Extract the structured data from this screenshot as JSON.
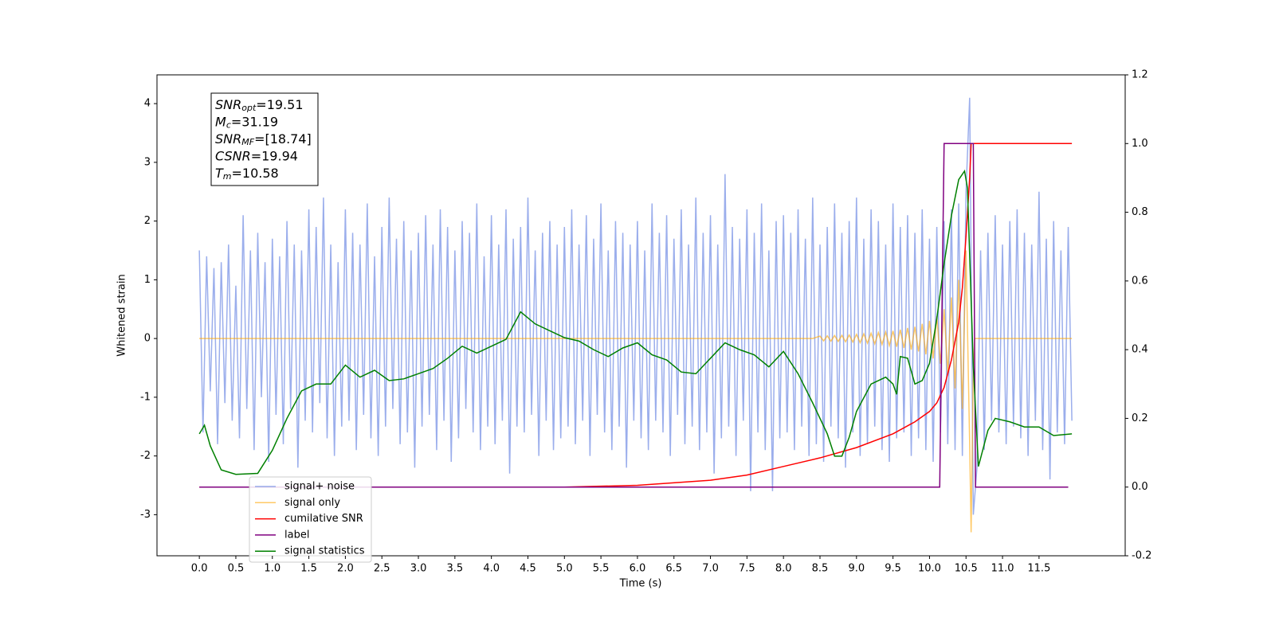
{
  "chart_data": {
    "type": "line",
    "xlabel": "Time (s)",
    "ylabel": "Whitened strain",
    "xlim": [
      -0.58,
      12.68
    ],
    "ylim": [
      -3.7,
      4.49
    ],
    "y2lim": [
      -0.2,
      1.2
    ],
    "xticks": [
      {
        "value": 0,
        "label": "0.0"
      },
      0.5,
      {
        "value": 1,
        "label": "1.0"
      },
      1.5,
      {
        "value": 2,
        "label": "2.0"
      },
      2.5,
      {
        "value": 3,
        "label": "3.0"
      },
      3.5,
      {
        "value": 4,
        "label": "4.0"
      },
      4.5,
      {
        "value": 5,
        "label": "5.0"
      },
      5.5,
      {
        "value": 6,
        "label": "6.0"
      },
      6.5,
      {
        "value": 7,
        "label": "7.0"
      },
      7.5,
      {
        "value": 8,
        "label": "8.0"
      },
      8.5,
      {
        "value": 9,
        "label": "9.0"
      },
      9.5,
      {
        "value": 10,
        "label": "10.0"
      },
      10.5,
      {
        "value": 11,
        "label": "11.0"
      },
      11.5
    ],
    "yticks": [
      -3,
      -2,
      -1,
      0,
      1,
      2,
      3,
      4
    ],
    "y2ticks": [
      -0.2,
      {
        "value": 0,
        "label": "0.0"
      },
      0.2,
      0.4,
      0.6,
      0.8,
      {
        "value": 1,
        "label": "1.0"
      },
      1.2
    ],
    "annotation": [
      {
        "symbol": "SNR",
        "subscript": "opt",
        "text": "=19.51"
      },
      {
        "symbol": "M",
        "subscript": "c",
        "text": "=31.19"
      },
      {
        "symbol": "SNR",
        "subscript": "MF",
        "text": "=[18.74]"
      },
      {
        "symbol": "CSNR",
        "text": "=19.94"
      },
      {
        "symbol": "T",
        "subscript": "m",
        "text": "=10.58"
      }
    ],
    "series": [
      {
        "name": "signal+ noise",
        "color": "#7a93e6",
        "axis": "y",
        "x": [
          0,
          0.05,
          0.1,
          0.15,
          0.2,
          0.25,
          0.3,
          0.35,
          0.4,
          0.45,
          0.5,
          0.55,
          0.6,
          0.65,
          0.7,
          0.75,
          0.8,
          0.85,
          0.9,
          0.95,
          1,
          1.05,
          1.1,
          1.15,
          1.2,
          1.25,
          1.3,
          1.35,
          1.4,
          1.45,
          1.5,
          1.55,
          1.6,
          1.65,
          1.7,
          1.75,
          1.8,
          1.85,
          1.9,
          1.95,
          2,
          2.05,
          2.1,
          2.15,
          2.2,
          2.25,
          2.3,
          2.35,
          2.4,
          2.45,
          2.5,
          2.55,
          2.6,
          2.65,
          2.7,
          2.75,
          2.8,
          2.85,
          2.9,
          2.95,
          3,
          3.05,
          3.1,
          3.15,
          3.2,
          3.25,
          3.3,
          3.35,
          3.4,
          3.45,
          3.5,
          3.55,
          3.6,
          3.65,
          3.7,
          3.75,
          3.8,
          3.85,
          3.9,
          3.95,
          4,
          4.05,
          4.1,
          4.15,
          4.2,
          4.25,
          4.3,
          4.35,
          4.4,
          4.45,
          4.5,
          4.55,
          4.6,
          4.65,
          4.7,
          4.75,
          4.8,
          4.85,
          4.9,
          4.95,
          5,
          5.05,
          5.1,
          5.15,
          5.2,
          5.25,
          5.3,
          5.35,
          5.4,
          5.45,
          5.5,
          5.55,
          5.6,
          5.65,
          5.7,
          5.75,
          5.8,
          5.85,
          5.9,
          5.95,
          6,
          6.05,
          6.1,
          6.15,
          6.2,
          6.25,
          6.3,
          6.35,
          6.4,
          6.45,
          6.5,
          6.55,
          6.6,
          6.65,
          6.7,
          6.75,
          6.8,
          6.85,
          6.9,
          6.95,
          7,
          7.05,
          7.1,
          7.15,
          7.2,
          7.25,
          7.3,
          7.35,
          7.4,
          7.45,
          7.5,
          7.55,
          7.6,
          7.65,
          7.7,
          7.75,
          7.8,
          7.85,
          7.9,
          7.95,
          8,
          8.05,
          8.1,
          8.15,
          8.2,
          8.25,
          8.3,
          8.35,
          8.4,
          8.45,
          8.5,
          8.55,
          8.6,
          8.65,
          8.7,
          8.75,
          8.8,
          8.85,
          8.9,
          8.95,
          9,
          9.05,
          9.1,
          9.15,
          9.2,
          9.25,
          9.3,
          9.35,
          9.4,
          9.45,
          9.5,
          9.55,
          9.6,
          9.65,
          9.7,
          9.75,
          9.8,
          9.85,
          9.9,
          9.95,
          10,
          10.05,
          10.1,
          10.15,
          10.2,
          10.25,
          10.3,
          10.35,
          10.4,
          10.45,
          10.5,
          10.55,
          10.6,
          10.65,
          10.7,
          10.75,
          10.8,
          10.85,
          10.9,
          10.95,
          11,
          11.05,
          11.1,
          11.15,
          11.2,
          11.25,
          11.3,
          11.35,
          11.4,
          11.45,
          11.5,
          11.55,
          11.6,
          11.65,
          11.7,
          11.75,
          11.8,
          11.85,
          11.9,
          11.95
        ],
        "values": [
          1.5,
          -1.6,
          1.4,
          -0.9,
          1.2,
          -1.8,
          1.3,
          -1.1,
          1.6,
          -1.4,
          0.9,
          -1.7,
          2.1,
          -1.2,
          1.5,
          -1.9,
          1.8,
          -1.0,
          1.3,
          -2.1,
          1.7,
          -1.3,
          1.4,
          -1.8,
          2.0,
          -1.2,
          1.6,
          -2.2,
          1.5,
          -1.4,
          2.2,
          -1.6,
          1.9,
          -1.1,
          2.4,
          -1.7,
          1.6,
          -2.0,
          1.3,
          -1.5,
          2.2,
          -1.4,
          1.8,
          -1.9,
          1.6,
          -1.3,
          2.3,
          -1.7,
          1.4,
          -2.0,
          1.9,
          -1.5,
          2.4,
          -1.2,
          1.7,
          -1.8,
          2.0,
          -1.6,
          1.5,
          -2.2,
          1.8,
          -1.5,
          2.1,
          -1.3,
          1.6,
          -1.9,
          2.2,
          -1.4,
          1.9,
          -2.1,
          1.5,
          -1.7,
          2.0,
          -1.2,
          1.8,
          -1.6,
          2.3,
          -1.9,
          1.4,
          -1.5,
          2.1,
          -1.8,
          1.6,
          -1.4,
          2.2,
          -2.3,
          1.7,
          -1.5,
          1.9,
          -1.6,
          2.4,
          -1.3,
          1.5,
          -2.0,
          1.8,
          -1.4,
          2.0,
          -1.9,
          1.6,
          -1.7,
          1.9,
          -1.5,
          2.2,
          -1.8,
          1.6,
          -1.4,
          2.1,
          -2.0,
          1.7,
          -1.3,
          2.3,
          -1.6,
          1.5,
          -1.9,
          2.0,
          -1.5,
          1.8,
          -2.2,
          1.6,
          -1.4,
          2.0,
          -1.7,
          1.5,
          -1.9,
          2.3,
          -1.4,
          1.8,
          -1.6,
          2.1,
          -2.0,
          1.7,
          -1.3,
          2.2,
          -1.8,
          1.6,
          -1.5,
          2.4,
          -1.9,
          1.8,
          -1.6,
          2.1,
          -2.3,
          1.6,
          -1.7,
          2.8,
          -1.5,
          1.9,
          -2.0,
          1.7,
          -1.4,
          2.2,
          -2.6,
          1.8,
          -1.6,
          2.3,
          -1.9,
          1.5,
          -2.6,
          2.0,
          -1.7,
          2.1,
          -1.6,
          1.8,
          -1.9,
          2.2,
          -1.5,
          1.7,
          -2.0,
          2.4,
          -1.8,
          1.6,
          -2.1,
          1.9,
          -1.5,
          2.3,
          -1.7,
          1.8,
          -2.2,
          2.0,
          -1.6,
          2.4,
          -2.0,
          1.7,
          -1.8,
          2.2,
          -1.5,
          2.0,
          -1.9,
          1.6,
          -2.1,
          2.3,
          -1.7,
          1.9,
          -1.6,
          2.1,
          -2.0,
          1.8,
          -1.7,
          2.2,
          -1.9,
          1.7,
          -2.1,
          1.9,
          -1.6,
          2.0,
          -1.8,
          2.2,
          -1.9,
          2.3,
          -2.0,
          2.5,
          4.1,
          -3.0,
          -2.2,
          1.5,
          -1.9,
          1.8,
          -1.4,
          2.1,
          -1.6,
          1.6,
          -1.8,
          2.0,
          -1.5,
          2.2,
          -1.7,
          1.8,
          -2.0,
          1.6,
          -1.4,
          2.5,
          -1.9,
          1.7,
          -2.4,
          2.0,
          -1.6,
          1.5,
          -1.8,
          1.9,
          -1.4
        ]
      },
      {
        "name": "signal only",
        "color": "#ffa500",
        "axis": "y",
        "x": [
          0,
          8.4,
          8.5,
          8.55,
          8.6,
          8.65,
          8.7,
          8.75,
          8.8,
          8.85,
          8.9,
          8.95,
          9,
          9.05,
          9.1,
          9.15,
          9.2,
          9.25,
          9.3,
          9.35,
          9.4,
          9.45,
          9.5,
          9.55,
          9.6,
          9.65,
          9.7,
          9.75,
          9.8,
          9.85,
          9.9,
          9.95,
          10,
          10.05,
          10.1,
          10.15,
          10.2,
          10.25,
          10.3,
          10.35,
          10.4,
          10.45,
          10.5,
          10.55,
          10.57,
          10.6,
          10.62,
          11.95
        ],
        "values": [
          0,
          0,
          0.04,
          -0.04,
          0.045,
          -0.045,
          0.05,
          -0.05,
          0.055,
          -0.055,
          0.06,
          -0.06,
          0.07,
          -0.07,
          0.08,
          -0.08,
          0.09,
          -0.09,
          0.1,
          -0.1,
          0.11,
          -0.12,
          0.13,
          -0.14,
          0.15,
          -0.16,
          0.18,
          -0.19,
          0.2,
          -0.22,
          0.25,
          -0.27,
          0.3,
          -0.34,
          0.38,
          -0.43,
          0.5,
          -0.6,
          0.7,
          -0.85,
          1.0,
          -1.2,
          1.5,
          -1.8,
          -3.3,
          -0.5,
          0,
          0
        ]
      },
      {
        "name": "cumilative SNR",
        "color": "#ff0000",
        "axis": "y2",
        "x": [
          0,
          5,
          6,
          7,
          7.5,
          8,
          8.5,
          9,
          9.5,
          9.8,
          10,
          10.1,
          10.2,
          10.3,
          10.4,
          10.45,
          10.5,
          10.55,
          10.57,
          11.95
        ],
        "values": [
          0,
          0,
          0.005,
          0.02,
          0.035,
          0.06,
          0.085,
          0.115,
          0.155,
          0.19,
          0.22,
          0.245,
          0.29,
          0.37,
          0.48,
          0.58,
          0.73,
          0.9,
          1,
          1
        ]
      },
      {
        "name": "label",
        "color": "#800080",
        "axis": "y2",
        "x": [
          0,
          10.14,
          10.2,
          10.6,
          10.63,
          11.9
        ],
        "values": [
          0,
          0,
          1,
          1,
          0,
          0
        ]
      },
      {
        "name": "signal statistics",
        "color": "#008000",
        "axis": "y2",
        "x": [
          0,
          0.07,
          0.15,
          0.3,
          0.5,
          0.8,
          1,
          1.2,
          1.4,
          1.6,
          1.8,
          2,
          2.2,
          2.4,
          2.6,
          2.8,
          3,
          3.2,
          3.4,
          3.6,
          3.8,
          4,
          4.2,
          4.4,
          4.6,
          4.8,
          5,
          5.2,
          5.4,
          5.6,
          5.8,
          6,
          6.2,
          6.4,
          6.6,
          6.8,
          7,
          7.2,
          7.4,
          7.6,
          7.8,
          8,
          8.2,
          8.4,
          8.6,
          8.7,
          8.8,
          8.9,
          9,
          9.2,
          9.4,
          9.5,
          9.55,
          9.6,
          9.7,
          9.8,
          9.9,
          10,
          10.1,
          10.2,
          10.3,
          10.4,
          10.48,
          10.52,
          10.6,
          10.67,
          10.8,
          10.9,
          11.1,
          11.3,
          11.5,
          11.7,
          11.95
        ],
        "values": [
          0.155,
          0.18,
          0.12,
          0.05,
          0.037,
          0.04,
          0.107,
          0.2,
          0.28,
          0.3,
          0.3,
          0.355,
          0.32,
          0.34,
          0.31,
          0.315,
          0.33,
          0.345,
          0.375,
          0.41,
          0.39,
          0.41,
          0.43,
          0.51,
          0.475,
          0.455,
          0.435,
          0.425,
          0.4,
          0.38,
          0.405,
          0.42,
          0.385,
          0.37,
          0.335,
          0.33,
          0.375,
          0.42,
          0.4,
          0.385,
          0.35,
          0.395,
          0.33,
          0.245,
          0.155,
          0.09,
          0.09,
          0.145,
          0.22,
          0.3,
          0.32,
          0.3,
          0.27,
          0.38,
          0.375,
          0.3,
          0.31,
          0.36,
          0.49,
          0.65,
          0.79,
          0.895,
          0.92,
          0.87,
          0.35,
          0.06,
          0.165,
          0.2,
          0.19,
          0.175,
          0.175,
          0.15,
          0.155
        ]
      }
    ]
  }
}
